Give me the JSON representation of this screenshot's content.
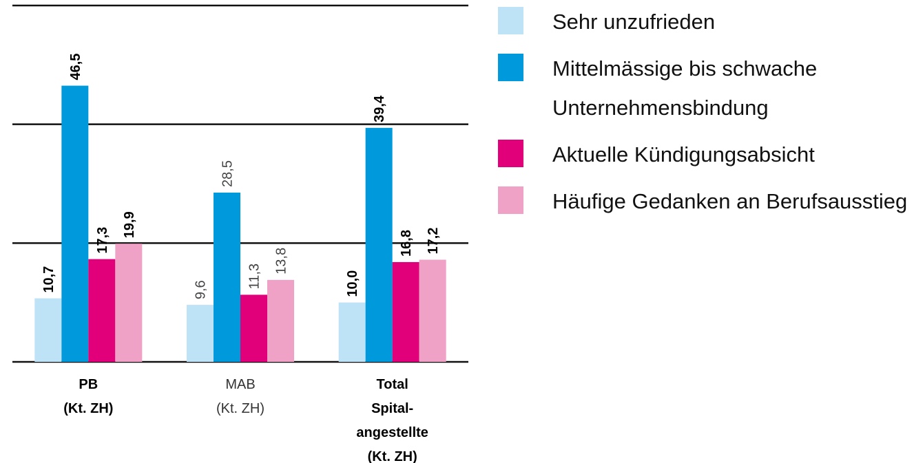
{
  "chart_data": {
    "type": "bar",
    "categories": [
      [
        "PB",
        "(Kt. ZH)"
      ],
      [
        "MAB",
        "(Kt. ZH)"
      ],
      [
        "Total",
        "Spital-",
        "angestellte",
        "(Kt. ZH)"
      ]
    ],
    "series": [
      {
        "name": "Sehr unzufrieden",
        "color": "#bfe3f6",
        "values": [
          10.7,
          9.6,
          10.0
        ],
        "value_labels": [
          "10,7",
          "9,6",
          "10,0"
        ]
      },
      {
        "name": "Mittelmässige bis schwache Unternehmensbindung",
        "color": "#0099dc",
        "values": [
          46.5,
          28.5,
          39.4
        ],
        "value_labels": [
          "46,5",
          "28,5",
          "39,4"
        ]
      },
      {
        "name": "Aktuelle Kündigungsabsicht",
        "color": "#e2007a",
        "values": [
          17.3,
          11.3,
          16.8
        ],
        "value_labels": [
          "17,3",
          "11,3",
          "16,8"
        ]
      },
      {
        "name": "Häufige Gedanken an Berufsausstieg",
        "color": "#f0a1c6",
        "values": [
          19.9,
          13.8,
          17.2
        ],
        "value_labels": [
          "19,9",
          "13,8",
          "17,2"
        ]
      }
    ],
    "ylim": [
      0,
      60
    ],
    "yticks": [
      0,
      20,
      40,
      60
    ],
    "grid": true
  }
}
